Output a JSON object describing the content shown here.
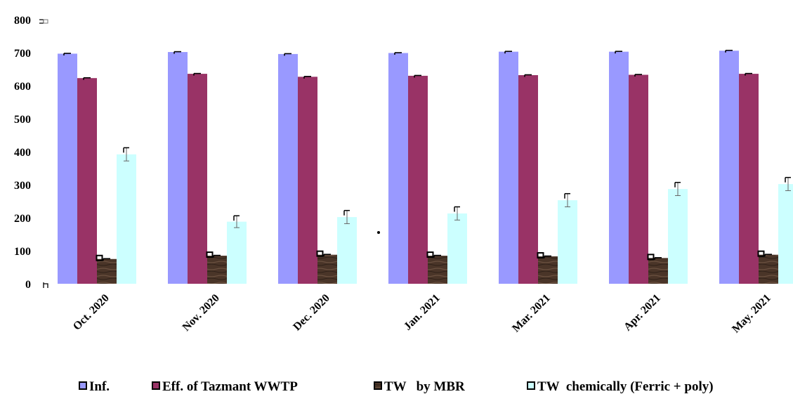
{
  "chart_data": {
    "type": "bar",
    "title": "",
    "xlabel": "",
    "ylabel": "",
    "ylim": [
      0,
      800
    ],
    "yticks": [
      0,
      100,
      200,
      300,
      400,
      500,
      600,
      700,
      800
    ],
    "grid": false,
    "legend_position": "bottom",
    "categories": [
      "Oct. 2020",
      "Nov. 2020",
      "Dec. 2020",
      "Jan. 2021",
      "Mar. 2021",
      "Apr. 2021",
      "May. 2021"
    ],
    "series": [
      {
        "name": "Inf.",
        "color": "#9999ff",
        "values": [
          697,
          702,
          696,
          699,
          703,
          703,
          706
        ],
        "errors": [
          1,
          1,
          1,
          1,
          1,
          1,
          1
        ]
      },
      {
        "name": "Eff. of Tazmant WWTP",
        "color": "#993366",
        "values": [
          623,
          636,
          627,
          630,
          632,
          633,
          636
        ],
        "errors": [
          1,
          1,
          1,
          1,
          1,
          1,
          1
        ]
      },
      {
        "name": "TW   by MBR",
        "color": "#4a3528",
        "values": [
          75,
          85,
          88,
          85,
          83,
          78,
          88
        ],
        "errors": [
          1,
          1,
          1,
          1,
          1,
          1,
          1
        ]
      },
      {
        "name": "TW  chemically (Ferric + poly)",
        "color": "#ccffff",
        "values": [
          392,
          188,
          202,
          213,
          253,
          287,
          302
        ],
        "errors": [
          20,
          18,
          20,
          20,
          20,
          20,
          20
        ]
      }
    ]
  }
}
